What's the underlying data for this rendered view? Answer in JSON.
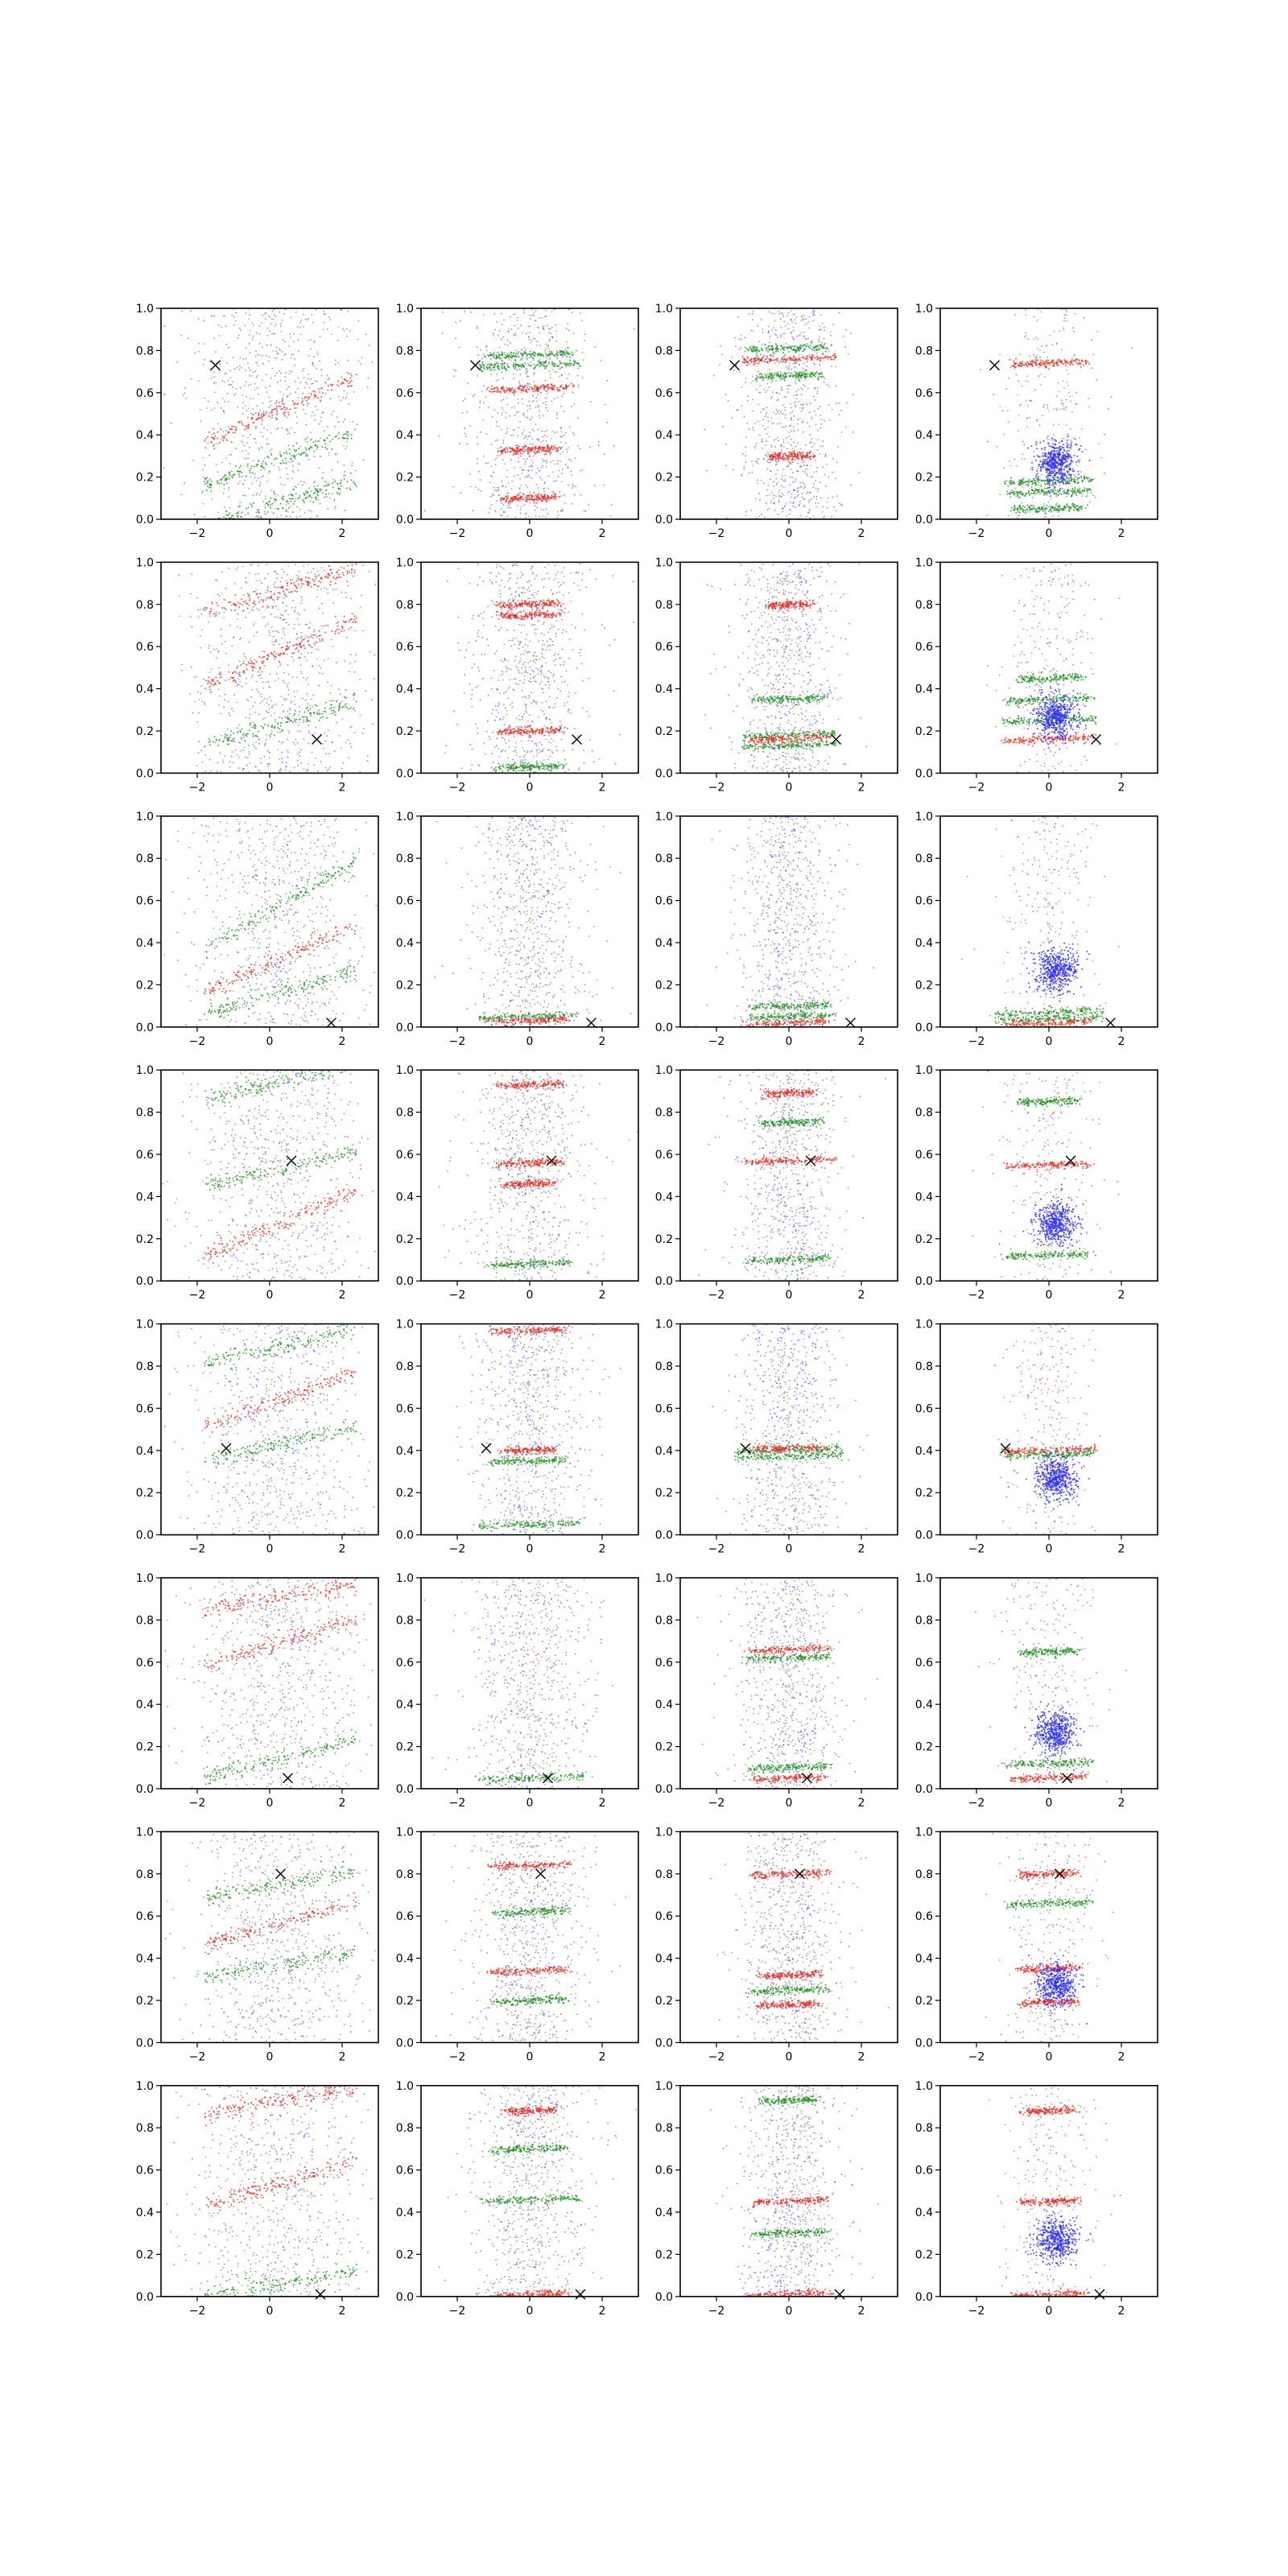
{
  "figure": {
    "rows": 8,
    "cols": 4,
    "xlim": [
      -3,
      3
    ],
    "ylim": [
      0,
      1
    ],
    "xticks": [
      -2,
      0,
      2
    ],
    "yticks": [
      0.0,
      0.2,
      0.4,
      0.6,
      0.8,
      1.0
    ],
    "xtick_labels": [
      "−2",
      "0",
      "2"
    ],
    "ytick_labels": [
      "0.0",
      "0.2",
      "0.4",
      "0.6",
      "0.8",
      "1.0"
    ],
    "colors": {
      "blue": "#2b2bff",
      "green": "#1f8f1f",
      "red": "#e8281e",
      "marker": "#000000"
    }
  },
  "chart_data": {
    "type": "scatter",
    "layout": "8x4 grid of small-multiple scatter panels",
    "xlim": [
      -3,
      3
    ],
    "ylim": [
      0,
      1
    ],
    "grid": false,
    "legend": "none",
    "series_colors": [
      "blue",
      "green",
      "red"
    ],
    "column_descriptions": [
      "blue, green and red points scattered with diagonal bands",
      "horizontal red/green streaks over diffuse blue cloud",
      "horizontal red/green streaks over vertical blue cloud",
      "horizontal red/green streaks with dense blue cluster near (0.2, 0.27)"
    ],
    "marker_per_row": [
      {
        "row": 1,
        "x": -1.5,
        "y": 0.73
      },
      {
        "row": 2,
        "x": 1.3,
        "y": 0.16
      },
      {
        "row": 3,
        "x": 1.7,
        "y": 0.02
      },
      {
        "row": 4,
        "x": 0.6,
        "y": 0.57
      },
      {
        "row": 5,
        "x": -1.2,
        "y": 0.41
      },
      {
        "row": 6,
        "x": 0.5,
        "y": 0.05
      },
      {
        "row": 7,
        "x": 0.3,
        "y": 0.8
      },
      {
        "row": 8,
        "x": 1.4,
        "y": 0.01
      }
    ],
    "panels": [
      {
        "row": 1,
        "col": 1,
        "bands": [
          {
            "color": "green",
            "type": "diag",
            "y": 0.27,
            "dy": 0.12
          },
          {
            "color": "green",
            "type": "diag",
            "y": 0.06,
            "dy": 0.1
          },
          {
            "color": "red",
            "type": "diag",
            "y": 0.5,
            "dy": 0.15
          }
        ],
        "cluster": null
      },
      {
        "row": 1,
        "col": 2,
        "bands": [
          {
            "color": "green",
            "type": "h",
            "y": 0.73,
            "w": 2.8
          },
          {
            "color": "green",
            "type": "h",
            "y": 0.78,
            "w": 2.4
          },
          {
            "color": "red",
            "type": "h",
            "y": 0.62,
            "w": 2.2
          },
          {
            "color": "red",
            "type": "h",
            "y": 0.33,
            "w": 1.6
          },
          {
            "color": "red",
            "type": "h",
            "y": 0.1,
            "w": 1.4
          }
        ],
        "cluster": null
      },
      {
        "row": 1,
        "col": 3,
        "bands": [
          {
            "color": "red",
            "type": "h",
            "y": 0.76,
            "w": 2.6
          },
          {
            "color": "green",
            "type": "h",
            "y": 0.81,
            "w": 2.2
          },
          {
            "color": "green",
            "type": "h",
            "y": 0.68,
            "w": 1.8
          },
          {
            "color": "red",
            "type": "h",
            "y": 0.3,
            "w": 1.2
          }
        ],
        "cluster": null
      },
      {
        "row": 1,
        "col": 4,
        "bands": [
          {
            "color": "red",
            "type": "h",
            "y": 0.74,
            "w": 2.0
          },
          {
            "color": "green",
            "type": "h",
            "y": 0.18,
            "w": 2.4
          },
          {
            "color": "green",
            "type": "h",
            "y": 0.13,
            "w": 2.2
          },
          {
            "color": "green",
            "type": "h",
            "y": 0.05,
            "w": 2.0
          }
        ],
        "cluster": {
          "x": 0.2,
          "y": 0.27
        }
      },
      {
        "row": 2,
        "col": 1,
        "bands": [
          {
            "color": "green",
            "type": "diag",
            "y": 0.22,
            "dy": 0.1
          },
          {
            "color": "red",
            "type": "diag",
            "y": 0.55,
            "dy": 0.15
          },
          {
            "color": "red",
            "type": "diag",
            "y": 0.85,
            "dy": 0.1
          }
        ],
        "cluster": null
      },
      {
        "row": 2,
        "col": 2,
        "bands": [
          {
            "color": "red",
            "type": "h",
            "y": 0.8,
            "w": 1.6
          },
          {
            "color": "red",
            "type": "h",
            "y": 0.75,
            "w": 1.6
          },
          {
            "color": "red",
            "type": "h",
            "y": 0.2,
            "w": 1.8
          },
          {
            "color": "green",
            "type": "h",
            "y": 0.03,
            "w": 1.8
          }
        ],
        "cluster": null
      },
      {
        "row": 2,
        "col": 3,
        "bands": [
          {
            "color": "green",
            "type": "h",
            "y": 0.18,
            "w": 2.6
          },
          {
            "color": "green",
            "type": "h",
            "y": 0.13,
            "w": 2.6
          },
          {
            "color": "green",
            "type": "h",
            "y": 0.35,
            "w": 2.0
          },
          {
            "color": "red",
            "type": "h",
            "y": 0.16,
            "w": 2.2
          },
          {
            "color": "red",
            "type": "h",
            "y": 0.8,
            "w": 1.2
          }
        ],
        "cluster": null
      },
      {
        "row": 2,
        "col": 4,
        "bands": [
          {
            "color": "red",
            "type": "h",
            "y": 0.16,
            "w": 2.4
          },
          {
            "color": "green",
            "type": "h",
            "y": 0.25,
            "w": 2.6
          },
          {
            "color": "green",
            "type": "h",
            "y": 0.35,
            "w": 2.4
          },
          {
            "color": "green",
            "type": "h",
            "y": 0.45,
            "w": 1.8
          }
        ],
        "cluster": {
          "x": 0.2,
          "y": 0.27
        }
      },
      {
        "row": 3,
        "col": 1,
        "bands": [
          {
            "color": "green",
            "type": "diag",
            "y": 0.55,
            "dy": 0.2
          },
          {
            "color": "red",
            "type": "diag",
            "y": 0.3,
            "dy": 0.15
          },
          {
            "color": "green",
            "type": "diag",
            "y": 0.15,
            "dy": 0.1
          }
        ],
        "cluster": null
      },
      {
        "row": 3,
        "col": 2,
        "bands": [
          {
            "color": "green",
            "type": "h",
            "y": 0.05,
            "w": 2.8
          },
          {
            "color": "red",
            "type": "h",
            "y": 0.03,
            "w": 2.2
          }
        ],
        "cluster": null
      },
      {
        "row": 3,
        "col": 3,
        "bands": [
          {
            "color": "red",
            "type": "h",
            "y": 0.02,
            "w": 2.4
          },
          {
            "color": "green",
            "type": "h",
            "y": 0.1,
            "w": 2.2
          },
          {
            "color": "green",
            "type": "h",
            "y": 0.05,
            "w": 2.4
          }
        ],
        "cluster": null
      },
      {
        "row": 3,
        "col": 4,
        "bands": [
          {
            "color": "green",
            "type": "h",
            "y": 0.07,
            "w": 3.0
          },
          {
            "color": "green",
            "type": "h",
            "y": 0.04,
            "w": 3.0
          },
          {
            "color": "red",
            "type": "h",
            "y": 0.02,
            "w": 2.4
          }
        ],
        "cluster": {
          "x": 0.2,
          "y": 0.27
        }
      },
      {
        "row": 4,
        "col": 1,
        "bands": [
          {
            "color": "green",
            "type": "diag",
            "y": 0.93,
            "dy": 0.08
          },
          {
            "color": "green",
            "type": "diag",
            "y": 0.52,
            "dy": 0.08
          },
          {
            "color": "red",
            "type": "diag",
            "y": 0.25,
            "dy": 0.15
          }
        ],
        "cluster": null
      },
      {
        "row": 4,
        "col": 2,
        "bands": [
          {
            "color": "red",
            "type": "h",
            "y": 0.93,
            "w": 1.8
          },
          {
            "color": "red",
            "type": "h",
            "y": 0.56,
            "w": 1.8
          },
          {
            "color": "red",
            "type": "h",
            "y": 0.46,
            "w": 1.4
          },
          {
            "color": "green",
            "type": "h",
            "y": 0.08,
            "w": 2.2
          }
        ],
        "cluster": null
      },
      {
        "row": 4,
        "col": 3,
        "bands": [
          {
            "color": "red",
            "type": "h",
            "y": 0.57,
            "w": 2.4
          },
          {
            "color": "red",
            "type": "h",
            "y": 0.89,
            "w": 1.4
          },
          {
            "color": "green",
            "type": "h",
            "y": 0.75,
            "w": 1.8
          },
          {
            "color": "green",
            "type": "h",
            "y": 0.1,
            "w": 2.2
          }
        ],
        "cluster": null
      },
      {
        "row": 4,
        "col": 4,
        "bands": [
          {
            "color": "red",
            "type": "h",
            "y": 0.55,
            "w": 2.2
          },
          {
            "color": "green",
            "type": "h",
            "y": 0.12,
            "w": 2.4
          },
          {
            "color": "green",
            "type": "h",
            "y": 0.85,
            "w": 1.6
          }
        ],
        "cluster": {
          "x": 0.2,
          "y": 0.27
        }
      },
      {
        "row": 5,
        "col": 1,
        "bands": [
          {
            "color": "green",
            "type": "diag",
            "y": 0.88,
            "dy": 0.08
          },
          {
            "color": "green",
            "type": "diag",
            "y": 0.42,
            "dy": 0.08
          },
          {
            "color": "red",
            "type": "diag",
            "y": 0.62,
            "dy": 0.12
          }
        ],
        "cluster": null
      },
      {
        "row": 5,
        "col": 2,
        "bands": [
          {
            "color": "red",
            "type": "h",
            "y": 0.97,
            "w": 2.0
          },
          {
            "color": "red",
            "type": "h",
            "y": 0.4,
            "w": 1.4
          },
          {
            "color": "green",
            "type": "h",
            "y": 0.05,
            "w": 2.8
          },
          {
            "color": "green",
            "type": "h",
            "y": 0.35,
            "w": 2.0
          }
        ],
        "cluster": null
      },
      {
        "row": 5,
        "col": 3,
        "bands": [
          {
            "color": "green",
            "type": "h",
            "y": 0.4,
            "w": 3.0
          },
          {
            "color": "green",
            "type": "h",
            "y": 0.37,
            "w": 3.0
          },
          {
            "color": "red",
            "type": "h",
            "y": 0.41,
            "w": 2.0
          }
        ],
        "cluster": null
      },
      {
        "row": 5,
        "col": 4,
        "bands": [
          {
            "color": "red",
            "type": "h",
            "y": 0.4,
            "w": 2.6
          },
          {
            "color": "green",
            "type": "h",
            "y": 0.38,
            "w": 2.4
          }
        ],
        "cluster": {
          "x": 0.2,
          "y": 0.27
        }
      },
      {
        "row": 6,
        "col": 1,
        "bands": [
          {
            "color": "green",
            "type": "diag",
            "y": 0.13,
            "dy": 0.08
          },
          {
            "color": "red",
            "type": "diag",
            "y": 0.68,
            "dy": 0.1
          },
          {
            "color": "red",
            "type": "diag",
            "y": 0.9,
            "dy": 0.06
          }
        ],
        "cluster": null
      },
      {
        "row": 6,
        "col": 2,
        "bands": [
          {
            "color": "green",
            "type": "h",
            "y": 0.05,
            "w": 3.0
          }
        ],
        "cluster": null
      },
      {
        "row": 6,
        "col": 3,
        "bands": [
          {
            "color": "red",
            "type": "h",
            "y": 0.66,
            "w": 2.2
          },
          {
            "color": "green",
            "type": "h",
            "y": 0.62,
            "w": 2.4
          },
          {
            "color": "red",
            "type": "h",
            "y": 0.05,
            "w": 2.0
          },
          {
            "color": "green",
            "type": "h",
            "y": 0.1,
            "w": 2.2
          }
        ],
        "cluster": null
      },
      {
        "row": 6,
        "col": 4,
        "bands": [
          {
            "color": "red",
            "type": "h",
            "y": 0.05,
            "w": 2.0
          },
          {
            "color": "green",
            "type": "h",
            "y": 0.12,
            "w": 2.4
          },
          {
            "color": "green",
            "type": "h",
            "y": 0.65,
            "w": 1.6
          }
        ],
        "cluster": {
          "x": 0.2,
          "y": 0.27
        }
      },
      {
        "row": 7,
        "col": 1,
        "bands": [
          {
            "color": "green",
            "type": "diag",
            "y": 0.36,
            "dy": 0.06
          },
          {
            "color": "green",
            "type": "diag",
            "y": 0.74,
            "dy": 0.06
          },
          {
            "color": "red",
            "type": "diag",
            "y": 0.55,
            "dy": 0.1
          }
        ],
        "cluster": null
      },
      {
        "row": 7,
        "col": 2,
        "bands": [
          {
            "color": "red",
            "type": "h",
            "y": 0.84,
            "w": 2.2
          },
          {
            "color": "red",
            "type": "h",
            "y": 0.34,
            "w": 2.2
          },
          {
            "color": "green",
            "type": "h",
            "y": 0.62,
            "w": 2.0
          },
          {
            "color": "green",
            "type": "h",
            "y": 0.2,
            "w": 2.0
          }
        ],
        "cluster": null
      },
      {
        "row": 7,
        "col": 3,
        "bands": [
          {
            "color": "red",
            "type": "h",
            "y": 0.8,
            "w": 2.2
          },
          {
            "color": "red",
            "type": "h",
            "y": 0.32,
            "w": 1.6
          },
          {
            "color": "red",
            "type": "h",
            "y": 0.18,
            "w": 1.6
          },
          {
            "color": "green",
            "type": "h",
            "y": 0.25,
            "w": 2.2
          }
        ],
        "cluster": null
      },
      {
        "row": 7,
        "col": 4,
        "bands": [
          {
            "color": "red",
            "type": "h",
            "y": 0.8,
            "w": 1.6
          },
          {
            "color": "red",
            "type": "h",
            "y": 0.35,
            "w": 1.6
          },
          {
            "color": "red",
            "type": "h",
            "y": 0.19,
            "w": 1.6
          },
          {
            "color": "green",
            "type": "h",
            "y": 0.66,
            "w": 2.4
          }
        ],
        "cluster": {
          "x": 0.2,
          "y": 0.27
        }
      },
      {
        "row": 8,
        "col": 1,
        "bands": [
          {
            "color": "red",
            "type": "diag",
            "y": 0.92,
            "dy": 0.06
          },
          {
            "color": "red",
            "type": "diag",
            "y": 0.52,
            "dy": 0.1
          },
          {
            "color": "green",
            "type": "diag",
            "y": 0.05,
            "dy": 0.06
          }
        ],
        "cluster": null
      },
      {
        "row": 8,
        "col": 2,
        "bands": [
          {
            "color": "green",
            "type": "h",
            "y": 0.46,
            "w": 2.8
          },
          {
            "color": "red",
            "type": "h",
            "y": 0.01,
            "w": 2.0
          },
          {
            "color": "red",
            "type": "h",
            "y": 0.88,
            "w": 1.4
          },
          {
            "color": "green",
            "type": "h",
            "y": 0.7,
            "w": 2.0
          }
        ],
        "cluster": null
      },
      {
        "row": 8,
        "col": 3,
        "bands": [
          {
            "color": "red",
            "type": "h",
            "y": 0.45,
            "w": 2.0
          },
          {
            "color": "red",
            "type": "h",
            "y": 0.01,
            "w": 2.4
          },
          {
            "color": "green",
            "type": "h",
            "y": 0.93,
            "w": 1.6
          },
          {
            "color": "green",
            "type": "h",
            "y": 0.3,
            "w": 2.0
          }
        ],
        "cluster": null
      },
      {
        "row": 8,
        "col": 4,
        "bands": [
          {
            "color": "red",
            "type": "h",
            "y": 0.45,
            "w": 1.6
          },
          {
            "color": "red",
            "type": "h",
            "y": 0.01,
            "w": 2.0
          },
          {
            "color": "red",
            "type": "h",
            "y": 0.88,
            "w": 1.4
          }
        ],
        "cluster": {
          "x": 0.2,
          "y": 0.27
        }
      }
    ]
  }
}
